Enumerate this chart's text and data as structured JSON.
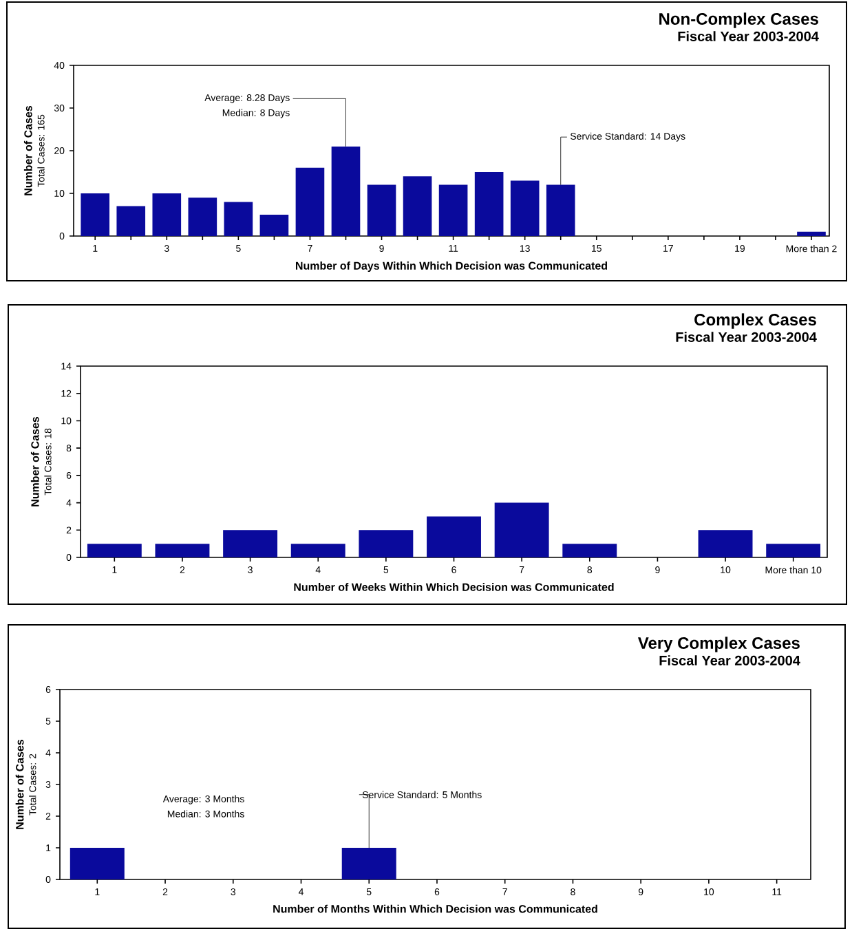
{
  "chart_data": [
    {
      "type": "bar",
      "title": "Non-Complex Cases",
      "subtitle": "Fiscal Year 2003-2004",
      "xlabel": "Number of Days Within Which Decision was Communicated",
      "ylabel": "Number of Cases",
      "color": "#0a0a9c",
      "x": [
        1,
        2,
        3,
        4,
        5,
        6,
        7,
        8,
        9,
        10,
        11,
        12,
        13,
        14,
        15,
        16,
        17,
        18,
        19,
        20,
        21
      ],
      "values": [
        10,
        7,
        10,
        9,
        8,
        5,
        16,
        21,
        12,
        14,
        12,
        15,
        13,
        12,
        0,
        0,
        0,
        0,
        0,
        0,
        1
      ],
      "xlim": [
        0.4,
        21.5
      ],
      "xticks": [
        1,
        {
          "value": 2,
          "label": null
        },
        3,
        {
          "value": 4,
          "label": null
        },
        5,
        {
          "value": 6,
          "label": null
        },
        7,
        {
          "value": 8,
          "label": null
        },
        9,
        {
          "value": 10,
          "label": null
        },
        11,
        {
          "value": 12,
          "label": null
        },
        13,
        {
          "value": 14,
          "label": null
        },
        15,
        {
          "value": 16,
          "label": null
        },
        17,
        {
          "value": 18,
          "label": null
        },
        19,
        {
          "value": 20,
          "label": null
        },
        {
          "value": 21,
          "label": "More than 2"
        }
      ],
      "ylim": [
        0,
        40
      ],
      "yticks": [
        0,
        10,
        20,
        30,
        40
      ],
      "annotations": [
        "Total Cases: 165",
        {
          "text": "Average: 8.28 Days",
          "x": 8,
          "y": 21
        },
        "Median: 8 Days",
        {
          "text": "Service Standard: 14 Days",
          "x": 14,
          "y": 12
        }
      ]
    },
    {
      "type": "bar",
      "title": "Complex Cases",
      "subtitle": "Fiscal Year 2003-2004",
      "xlabel": "Number of Weeks Within Which Decision was Communicated",
      "ylabel": "Number of Cases",
      "color": "#0a0a9c",
      "categories": [
        "1",
        "2",
        "3",
        "4",
        "5",
        "6",
        "7",
        "8",
        "9",
        "10",
        "More than 10"
      ],
      "values": [
        1,
        1,
        2,
        1,
        2,
        3,
        4,
        1,
        0,
        2,
        1
      ],
      "ylim": [
        0,
        14
      ],
      "yticks": [
        0,
        2,
        4,
        6,
        8,
        10,
        12,
        14
      ],
      "annotations": [
        "Total Cases: 18"
      ]
    },
    {
      "type": "bar",
      "title": "Very Complex Cases",
      "subtitle": "Fiscal Year 2003-2004",
      "xlabel": "Number of Months Within Which Decision was Communicated",
      "ylabel": "Number of Cases",
      "color": "#0a0a9c",
      "x": [
        1,
        2,
        3,
        4,
        5,
        6,
        7,
        8,
        9,
        10,
        11
      ],
      "values": [
        1,
        0,
        0,
        0,
        1,
        0,
        0,
        0,
        0,
        0,
        0
      ],
      "xlim": [
        0.45,
        11.5
      ],
      "xticks": [
        1,
        2,
        3,
        4,
        5,
        6,
        7,
        8,
        9,
        10,
        11
      ],
      "ylim": [
        0,
        6
      ],
      "yticks": [
        0,
        1,
        2,
        3,
        4,
        5,
        6
      ],
      "annotations": [
        "Total Cases: 2",
        "Average: 3 Months",
        "Median: 3 Months",
        {
          "text": "Service Standard: 5 Months",
          "x": 5,
          "y": 1
        }
      ]
    }
  ]
}
